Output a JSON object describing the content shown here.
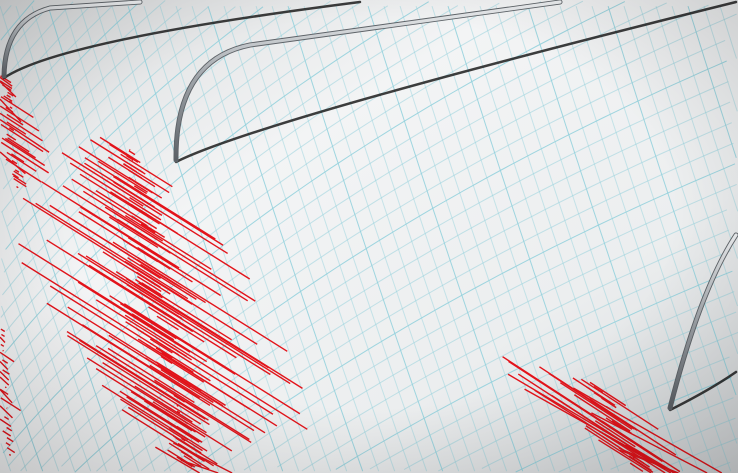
{
  "scene": {
    "subject": "seismograph-drum",
    "colors": {
      "paper": "#f1f2f3",
      "paper_shade": "#c9ccce",
      "grid": "#8fd0dc",
      "trace": "#e3131a",
      "needle": "#b8bcc0",
      "needle_shadow": "#1c1c1c"
    }
  }
}
